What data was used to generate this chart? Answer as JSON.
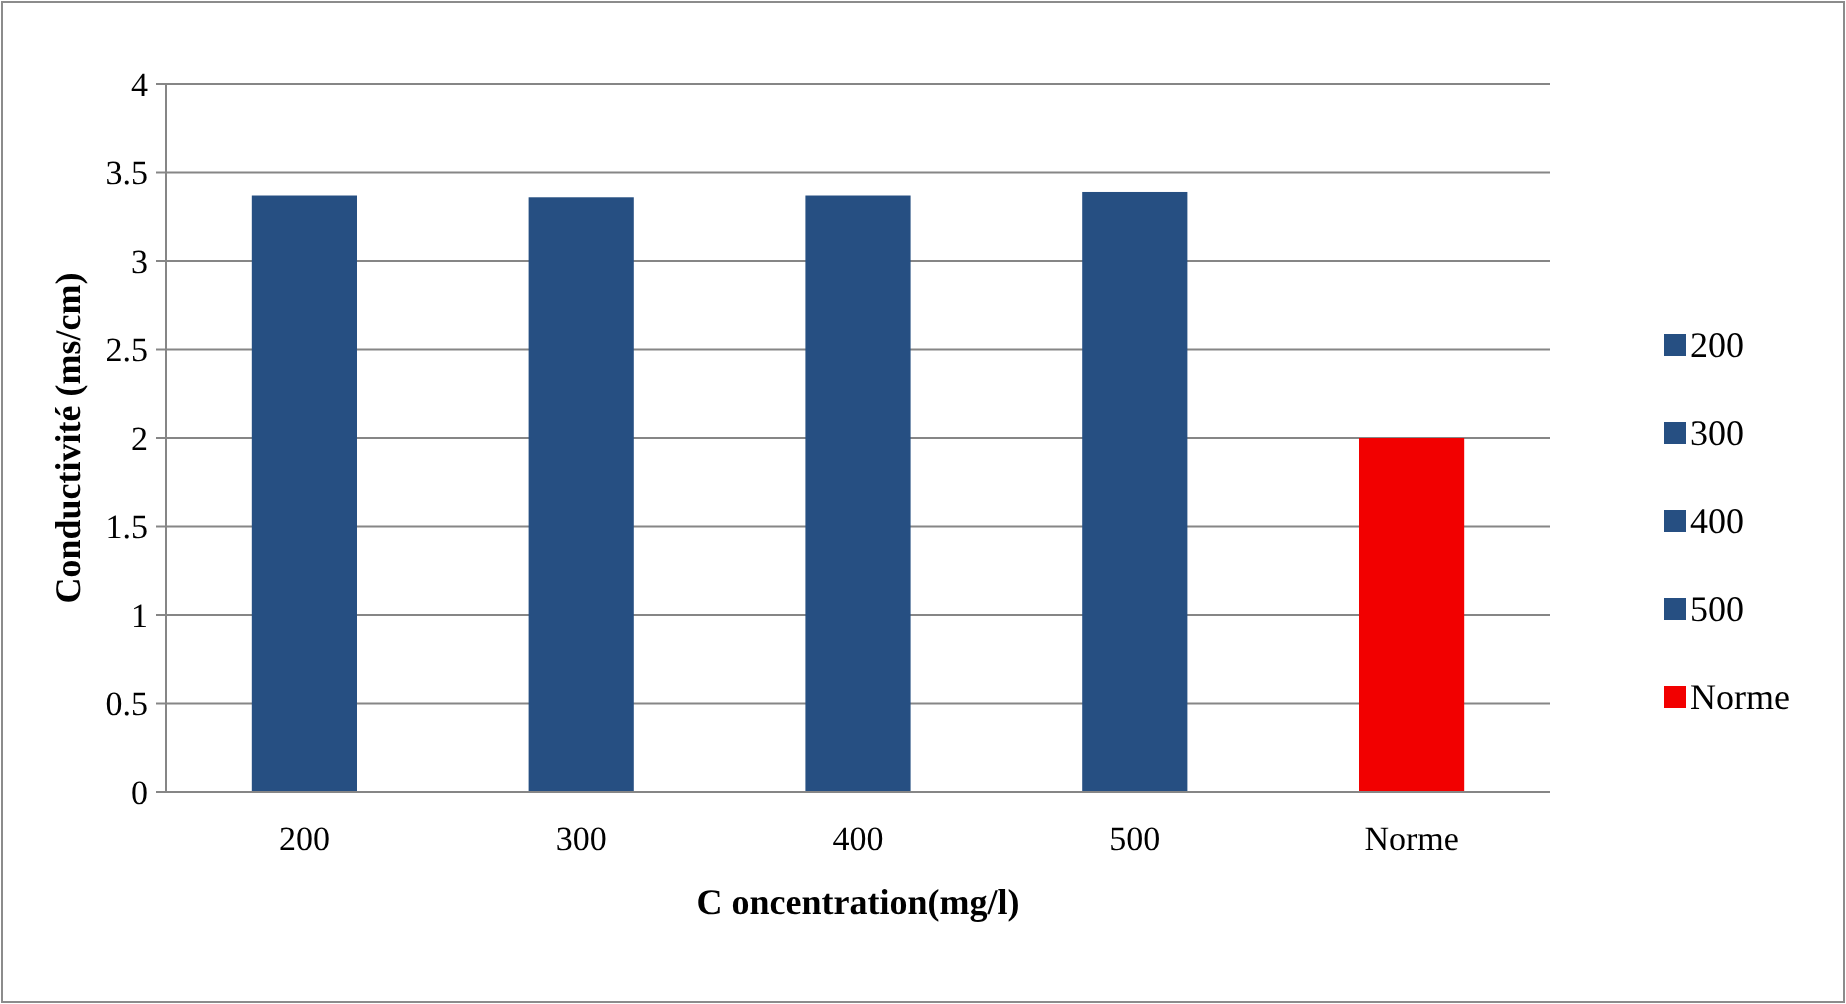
{
  "chart_data": {
    "type": "bar",
    "xlabel": "C oncentration(mg/l)",
    "ylabel": "Conductivité (ms/cm)",
    "categories": [
      "200",
      "300",
      "400",
      "500",
      "Norme"
    ],
    "series": [
      {
        "name": "200",
        "color": "#264f82",
        "values": [
          3.37,
          null,
          null,
          null,
          null
        ]
      },
      {
        "name": "300",
        "color": "#264f82",
        "values": [
          null,
          3.36,
          null,
          null,
          null
        ]
      },
      {
        "name": "400",
        "color": "#264f82",
        "values": [
          null,
          null,
          3.37,
          null,
          null
        ]
      },
      {
        "name": "500",
        "color": "#264f82",
        "values": [
          null,
          null,
          null,
          3.39,
          null
        ]
      },
      {
        "name": "Norme",
        "color": "#f20000",
        "values": [
          null,
          null,
          null,
          null,
          2.0
        ]
      }
    ],
    "ylim": [
      0,
      4
    ],
    "yticks": [
      0,
      0.5,
      1,
      1.5,
      2,
      2.5,
      3,
      3.5,
      4
    ],
    "grid": "y",
    "legend": "right"
  }
}
